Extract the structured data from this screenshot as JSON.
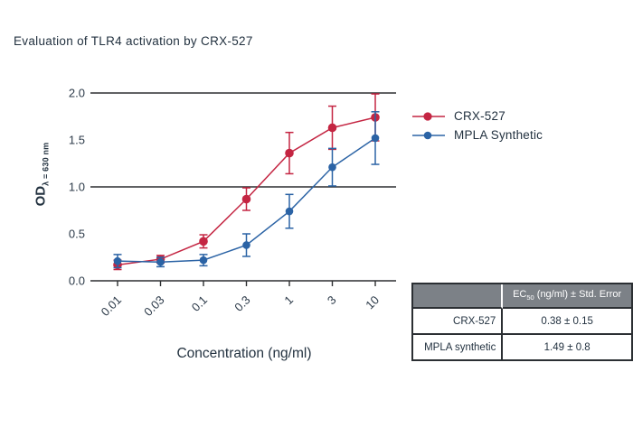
{
  "title": "Evaluation of TLR4 activation by CRX-527",
  "chart_data": {
    "type": "line",
    "title": "Evaluation of TLR4 activation by CRX-527",
    "xlabel": "Concentration (ng/ml)",
    "ylabel": "OD",
    "ylabel_subscript": "λ = 630 nm",
    "x_scale": "log-categorical",
    "categories": [
      "0.01",
      "0.03",
      "0.1",
      "0.3",
      "1",
      "3",
      "10"
    ],
    "yticks": [
      "0.0",
      "0.5",
      "1.0",
      "1.5",
      "2.0"
    ],
    "ylim": [
      0,
      2
    ],
    "gridlines_y": [
      0,
      1,
      2
    ],
    "grid": "horizontal-only",
    "legend_position": "right",
    "series": [
      {
        "name": "CRX-527",
        "color": "#c42542",
        "marker": "circle",
        "values": [
          0.17,
          0.23,
          0.42,
          0.87,
          1.36,
          1.63,
          1.74
        ],
        "errors": [
          0.05,
          0.04,
          0.07,
          0.12,
          0.22,
          0.23,
          0.25
        ]
      },
      {
        "name": "MPLA Synthetic",
        "color": "#2b63a5",
        "marker": "circle",
        "values": [
          0.21,
          0.2,
          0.22,
          0.38,
          0.74,
          1.21,
          1.52
        ],
        "errors": [
          0.07,
          0.05,
          0.06,
          0.12,
          0.18,
          0.2,
          0.28
        ]
      }
    ]
  },
  "table": {
    "header_prefix": "EC",
    "header_sub": "50",
    "header_rest": " (ng/ml) ± Std. Error",
    "header_bg": "#7c8187",
    "rows": [
      {
        "label": "CRX-527",
        "value": "0.38 ± 0.15"
      },
      {
        "label": "MPLA synthetic",
        "value": "1.49 ± 0.8"
      }
    ]
  },
  "colors": {
    "background": "#ffffff",
    "text": "#233240",
    "tick_text": "#2c3a49",
    "axis": "#2d2f31",
    "crx527_red": "#c42542",
    "mpla_blue": "#2b63a5"
  }
}
